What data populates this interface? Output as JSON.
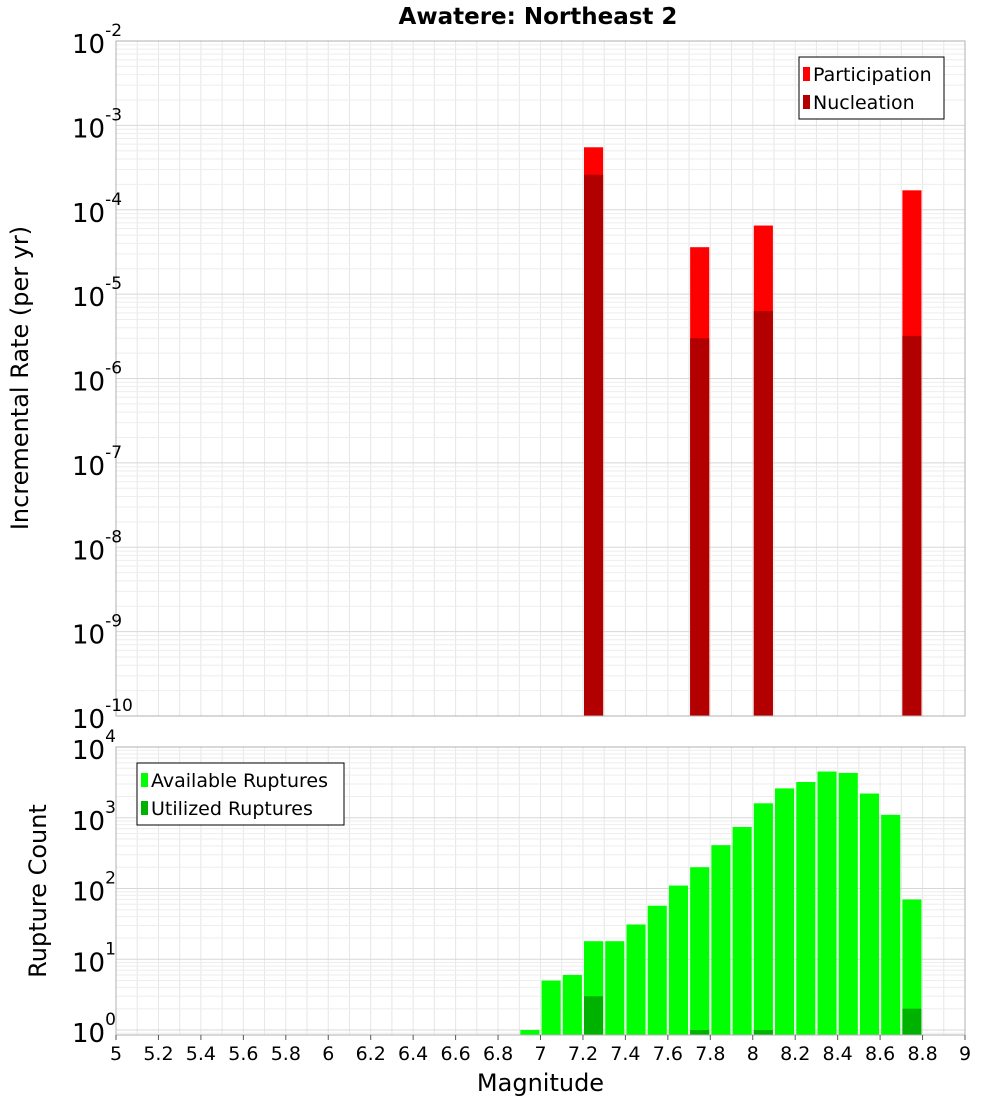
{
  "title": "Awatere: Northeast 2",
  "colors": {
    "participation": "#ff0000",
    "nucleation": "#b20000",
    "available": "#00ff00",
    "utilized": "#00b200",
    "grid": "#e6e6e6",
    "frame": "#b0b0b0"
  },
  "chart_data": [
    {
      "type": "bar",
      "panel": "top",
      "title": "Awatere: Northeast 2",
      "ylabel": "Incremental Rate (per yr)",
      "xlabel": "",
      "xlim": [
        5,
        9
      ],
      "ylim": [
        1e-10,
        0.01
      ],
      "yscale": "log",
      "grid": true,
      "legend_position": "top-right",
      "bar_width": 0.09,
      "x": [
        7.25,
        7.75,
        8.05,
        8.75
      ],
      "series": [
        {
          "name": "Participation",
          "color": "#ff0000",
          "values": [
            0.00055,
            3.6e-05,
            6.5e-05,
            0.00017
          ]
        },
        {
          "name": "Nucleation",
          "color": "#b20000",
          "values": [
            0.00026,
            3e-06,
            6.3e-06,
            3.2e-06
          ]
        }
      ],
      "y_ticks": [
        {
          "value": 1e-10,
          "base": "10",
          "exp": "-10"
        },
        {
          "value": 1e-09,
          "base": "10",
          "exp": "-9"
        },
        {
          "value": 1e-08,
          "base": "10",
          "exp": "-8"
        },
        {
          "value": 1e-07,
          "base": "10",
          "exp": "-7"
        },
        {
          "value": 1e-06,
          "base": "10",
          "exp": "-6"
        },
        {
          "value": 1e-05,
          "base": "10",
          "exp": "-5"
        },
        {
          "value": 0.0001,
          "base": "10",
          "exp": "-4"
        },
        {
          "value": 0.001,
          "base": "10",
          "exp": "-3"
        },
        {
          "value": 0.01,
          "base": "10",
          "exp": "-2"
        }
      ]
    },
    {
      "type": "bar",
      "panel": "bottom",
      "ylabel": "Rupture Count",
      "xlabel": "Magnitude",
      "xlim": [
        5,
        9
      ],
      "ylim": [
        0.85,
        10000
      ],
      "yscale": "log",
      "grid": true,
      "legend_position": "top-left",
      "bar_width": 0.09,
      "x": [
        6.95,
        7.05,
        7.15,
        7.25,
        7.35,
        7.45,
        7.55,
        7.65,
        7.75,
        7.85,
        7.95,
        8.05,
        8.15,
        8.25,
        8.35,
        8.45,
        8.55,
        8.65,
        8.75
      ],
      "series": [
        {
          "name": "Available Ruptures",
          "color": "#00ff00",
          "values": [
            1,
            5,
            6,
            18,
            18,
            31,
            57,
            110,
            200,
            410,
            740,
            1600,
            2600,
            3200,
            4500,
            4300,
            2200,
            1100,
            70
          ]
        },
        {
          "name": "Utilized Ruptures",
          "color": "#00b200",
          "values": [
            0,
            0,
            0,
            3,
            0,
            0,
            0,
            0,
            1,
            0,
            0,
            1,
            0,
            0,
            0,
            0,
            0,
            0,
            2
          ]
        }
      ],
      "y_ticks": [
        {
          "value": 1,
          "base": "10",
          "exp": "0"
        },
        {
          "value": 10,
          "base": "10",
          "exp": "1"
        },
        {
          "value": 100,
          "base": "10",
          "exp": "2"
        },
        {
          "value": 1000,
          "base": "10",
          "exp": "3"
        },
        {
          "value": 10000,
          "base": "10",
          "exp": "4"
        }
      ],
      "x_ticks": [
        "5",
        "5.2",
        "5.4",
        "5.6",
        "5.8",
        "6",
        "6.2",
        "6.4",
        "6.6",
        "6.8",
        "7",
        "7.2",
        "7.4",
        "7.6",
        "7.8",
        "8",
        "8.2",
        "8.4",
        "8.6",
        "8.8",
        "9"
      ]
    }
  ]
}
